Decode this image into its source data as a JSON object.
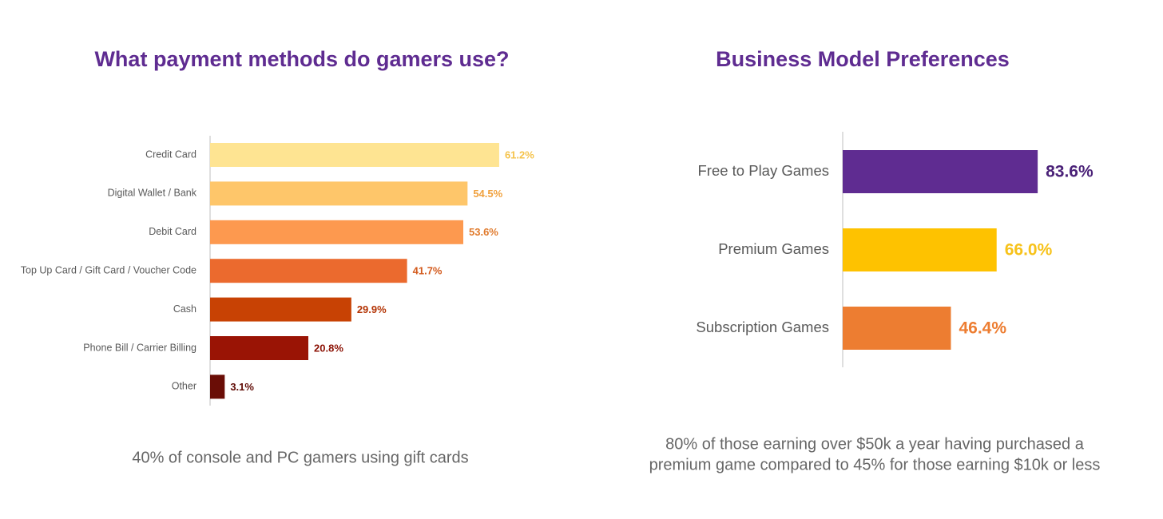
{
  "chart_data": [
    {
      "type": "bar",
      "orientation": "horizontal",
      "title": "What payment methods do gamers use?",
      "categories": [
        "Credit Card",
        "Digital Wallet / Bank",
        "Debit Card",
        "Top Up Card / Gift Card / Voucher Code",
        "Cash",
        "Phone Bill / Carrier Billing",
        "Other"
      ],
      "values": [
        61.2,
        54.5,
        53.6,
        41.7,
        29.9,
        20.8,
        3.1
      ],
      "value_labels": [
        "61.2%",
        "54.5%",
        "53.6%",
        "41.7%",
        "29.9%",
        "20.8%",
        "3.1%"
      ],
      "colors": [
        "#fee492",
        "#fec66a",
        "#fd994f",
        "#eb6a2e",
        "#c84204",
        "#9a1405",
        "#6a0d06"
      ],
      "label_colors": [
        "#f5c34c",
        "#f0a13e",
        "#e07a2c",
        "#d35a1c",
        "#b43506",
        "#8c1205",
        "#600b05"
      ],
      "xlim": [
        0,
        70
      ],
      "caption": [
        "40% of console and PC gamers using gift cards"
      ]
    },
    {
      "type": "bar",
      "orientation": "horizontal",
      "title": "Business Model Preferences",
      "categories": [
        "Free to Play Games",
        "Premium Games",
        "Subscription Games"
      ],
      "values": [
        83.6,
        66.0,
        46.4
      ],
      "value_labels": [
        "83.6%",
        "66.0%",
        "46.4%"
      ],
      "colors": [
        "#5f2c91",
        "#fec200",
        "#ed7d31"
      ],
      "label_colors": [
        "#4b2278",
        "#f7c21a",
        "#ed7d31"
      ],
      "xlim": [
        0,
        100
      ],
      "caption": [
        "80% of those earning over $50k a year having purchased a",
        "premium game compared to 45% for those earning $10k or less"
      ]
    }
  ]
}
